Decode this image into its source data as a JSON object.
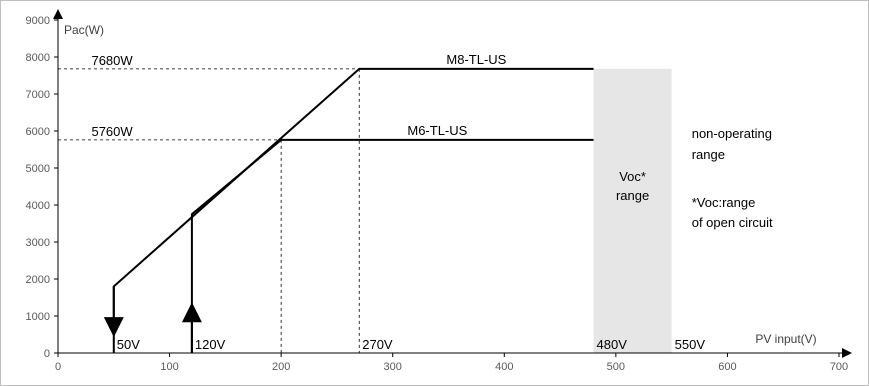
{
  "chart_data": {
    "type": "line",
    "title": "",
    "xlabel": "PV input(V)",
    "ylabel": "Pac(W)",
    "xlim": [
      0,
      700
    ],
    "ylim": [
      0,
      9000
    ],
    "xticks": [
      0,
      100,
      200,
      300,
      400,
      500,
      600,
      700
    ],
    "yticks": [
      0,
      1000,
      2000,
      3000,
      4000,
      5000,
      6000,
      7000,
      8000,
      9000
    ],
    "grid": false,
    "series": [
      {
        "name": "M8-TL-US",
        "x": [
          50,
          50,
          270,
          480
        ],
        "y": [
          0,
          1800,
          7680,
          7680
        ],
        "color": "#000000"
      },
      {
        "name": "M6-TL-US",
        "x": [
          120,
          120,
          200,
          480
        ],
        "y": [
          0,
          3750,
          5760,
          5760
        ],
        "color": "#000000"
      }
    ],
    "arrows": [
      {
        "x": 50,
        "y_from": 1800,
        "y_to": 700,
        "direction": "down"
      },
      {
        "x": 120,
        "y_from": 0,
        "y_to": 1100,
        "direction": "up"
      }
    ],
    "reference_lines": [
      {
        "value_label": "7680W",
        "y": 7680,
        "x_end": 270
      },
      {
        "value_label": "5760W",
        "y": 5760,
        "x_end": 200
      },
      {
        "x": 200,
        "y_end": 5760
      },
      {
        "x": 270,
        "y_end": 7680
      }
    ],
    "shaded_region": {
      "x_from": 480,
      "x_to": 550,
      "label_line1": "Voc*",
      "label_line2": "range",
      "color": "#e6e6e6"
    },
    "voltage_labels": [
      {
        "text": "50V",
        "x": 50
      },
      {
        "text": "120V",
        "x": 120
      },
      {
        "text": "270V",
        "x": 270
      },
      {
        "text": "480V",
        "x": 480
      },
      {
        "text": "550V",
        "x": 550
      }
    ],
    "annotations": {
      "non_operating_line1": "non-operating",
      "non_operating_line2": "range",
      "voc_note_line1": "*Voc:range",
      "voc_note_line2": "of open circuit"
    }
  }
}
